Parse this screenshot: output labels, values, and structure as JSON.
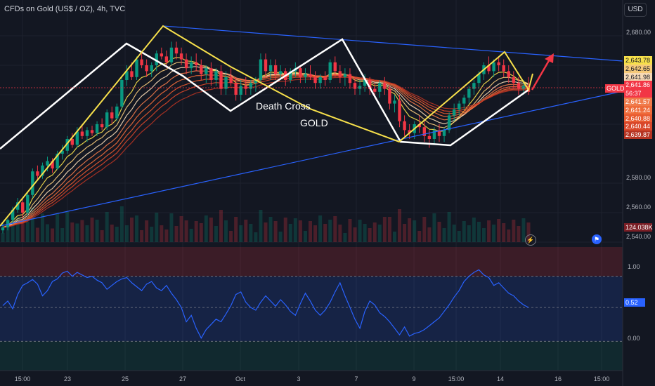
{
  "header": {
    "title": "CFDs on Gold (US$ / OZ), 4h, TVC",
    "currency_button": "USD"
  },
  "annotations": {
    "death_cross": "Death Cross",
    "gold": "GOLD"
  },
  "price_axis": {
    "ticks": [
      "2,680.00",
      "2,580.00",
      "2,560.00",
      "2,540.00"
    ]
  },
  "price_labels": [
    {
      "text": "2,643.78",
      "bg": "#f7e04b",
      "fg": "#131722"
    },
    {
      "text": "2,642.65",
      "bg": "#f5c97a",
      "fg": "#131722"
    },
    {
      "text": "2,641.98",
      "bg": "#f7d9b5",
      "fg": "#131722"
    },
    {
      "text": "2,641.86",
      "bg": "#f23645",
      "fg": "#ffffff"
    },
    {
      "text": "56:37",
      "bg": "#f23645",
      "fg": "#ffffff"
    },
    {
      "text": "2,641.57",
      "bg": "#f07a4a",
      "fg": "#ffffff"
    },
    {
      "text": "2,641.24",
      "bg": "#ef6b3a",
      "fg": "#ffffff"
    },
    {
      "text": "2,640.88",
      "bg": "#e85a30",
      "fg": "#ffffff"
    },
    {
      "text": "2,640.44",
      "bg": "#d9472a",
      "fg": "#ffffff"
    },
    {
      "text": "2,639.87",
      "bg": "#b53322",
      "fg": "#ffffff"
    }
  ],
  "gold_tag": "GOLD",
  "volume_label": {
    "text": "124.038K",
    "bg": "#7a1e25"
  },
  "oscillator": {
    "levels": [
      "1.00",
      "0.52",
      "0.00"
    ],
    "current_bg": "#2962ff"
  },
  "time_axis": [
    "15:00",
    "23",
    "25",
    "27",
    "Oct",
    "3",
    "7",
    "9",
    "15:00",
    "14",
    "16",
    "15:00"
  ],
  "icons": {
    "lightning": "lightning-icon",
    "us_flag": "us-flag-icon"
  },
  "chart_data": {
    "type": "candlestick",
    "symbol": "GOLD",
    "timeframe": "4h",
    "ylim": [
      2540,
      2690
    ],
    "candles": [
      [
        2548,
        2553,
        2546,
        2550
      ],
      [
        2550,
        2556,
        2548,
        2555
      ],
      [
        2555,
        2564,
        2552,
        2562
      ],
      [
        2562,
        2570,
        2560,
        2567
      ],
      [
        2567,
        2569,
        2556,
        2560
      ],
      [
        2560,
        2574,
        2558,
        2572
      ],
      [
        2572,
        2590,
        2570,
        2588
      ],
      [
        2588,
        2592,
        2582,
        2585
      ],
      [
        2585,
        2594,
        2583,
        2592
      ],
      [
        2592,
        2598,
        2588,
        2595
      ],
      [
        2595,
        2597,
        2587,
        2590
      ],
      [
        2590,
        2602,
        2589,
        2600
      ],
      [
        2600,
        2606,
        2596,
        2602
      ],
      [
        2602,
        2612,
        2600,
        2610
      ],
      [
        2610,
        2614,
        2604,
        2606
      ],
      [
        2606,
        2618,
        2604,
        2615
      ],
      [
        2615,
        2620,
        2610,
        2612
      ],
      [
        2612,
        2618,
        2608,
        2616
      ],
      [
        2616,
        2619,
        2612,
        2614
      ],
      [
        2614,
        2622,
        2612,
        2620
      ],
      [
        2620,
        2624,
        2616,
        2618
      ],
      [
        2618,
        2630,
        2616,
        2628
      ],
      [
        2628,
        2632,
        2620,
        2624
      ],
      [
        2624,
        2634,
        2622,
        2632
      ],
      [
        2632,
        2652,
        2630,
        2650
      ],
      [
        2650,
        2660,
        2646,
        2656
      ],
      [
        2656,
        2662,
        2650,
        2652
      ],
      [
        2652,
        2666,
        2650,
        2664
      ],
      [
        2664,
        2668,
        2658,
        2660
      ],
      [
        2660,
        2664,
        2652,
        2656
      ],
      [
        2656,
        2662,
        2652,
        2660
      ],
      [
        2660,
        2670,
        2656,
        2668
      ],
      [
        2668,
        2672,
        2664,
        2666
      ],
      [
        2666,
        2670,
        2658,
        2662
      ],
      [
        2662,
        2676,
        2660,
        2672
      ],
      [
        2672,
        2676,
        2664,
        2668
      ],
      [
        2668,
        2672,
        2660,
        2664
      ],
      [
        2664,
        2668,
        2654,
        2658
      ],
      [
        2658,
        2666,
        2654,
        2662
      ],
      [
        2662,
        2668,
        2656,
        2660
      ],
      [
        2660,
        2664,
        2650,
        2654
      ],
      [
        2654,
        2660,
        2648,
        2658
      ],
      [
        2658,
        2662,
        2646,
        2650
      ],
      [
        2650,
        2658,
        2646,
        2656
      ],
      [
        2656,
        2660,
        2640,
        2644
      ],
      [
        2644,
        2656,
        2640,
        2652
      ],
      [
        2652,
        2658,
        2646,
        2648
      ],
      [
        2648,
        2652,
        2636,
        2640
      ],
      [
        2640,
        2650,
        2636,
        2646
      ],
      [
        2646,
        2652,
        2640,
        2644
      ],
      [
        2644,
        2650,
        2640,
        2648
      ],
      [
        2648,
        2652,
        2642,
        2650
      ],
      [
        2650,
        2668,
        2648,
        2664
      ],
      [
        2664,
        2668,
        2652,
        2656
      ],
      [
        2656,
        2664,
        2650,
        2660
      ],
      [
        2660,
        2664,
        2650,
        2654
      ],
      [
        2654,
        2660,
        2650,
        2656
      ],
      [
        2656,
        2658,
        2646,
        2650
      ],
      [
        2650,
        2658,
        2648,
        2656
      ],
      [
        2656,
        2662,
        2652,
        2658
      ],
      [
        2658,
        2660,
        2648,
        2652
      ],
      [
        2652,
        2658,
        2648,
        2654
      ],
      [
        2654,
        2660,
        2650,
        2652
      ],
      [
        2652,
        2656,
        2644,
        2648
      ],
      [
        2648,
        2654,
        2644,
        2652
      ],
      [
        2652,
        2656,
        2646,
        2650
      ],
      [
        2650,
        2664,
        2648,
        2662
      ],
      [
        2662,
        2666,
        2652,
        2656
      ],
      [
        2656,
        2660,
        2648,
        2652
      ],
      [
        2652,
        2658,
        2646,
        2654
      ],
      [
        2654,
        2658,
        2644,
        2648
      ],
      [
        2648,
        2652,
        2640,
        2644
      ],
      [
        2644,
        2650,
        2640,
        2646
      ],
      [
        2646,
        2654,
        2642,
        2650
      ],
      [
        2650,
        2652,
        2640,
        2644
      ],
      [
        2644,
        2648,
        2638,
        2642
      ],
      [
        2642,
        2650,
        2638,
        2648
      ],
      [
        2648,
        2652,
        2640,
        2644
      ],
      [
        2644,
        2646,
        2630,
        2634
      ],
      [
        2634,
        2640,
        2628,
        2636
      ],
      [
        2636,
        2640,
        2618,
        2622
      ],
      [
        2622,
        2626,
        2612,
        2616
      ],
      [
        2616,
        2620,
        2610,
        2614
      ],
      [
        2614,
        2622,
        2610,
        2620
      ],
      [
        2620,
        2626,
        2614,
        2618
      ],
      [
        2618,
        2622,
        2608,
        2612
      ],
      [
        2612,
        2616,
        2604,
        2610
      ],
      [
        2610,
        2618,
        2606,
        2616
      ],
      [
        2616,
        2620,
        2608,
        2612
      ],
      [
        2612,
        2618,
        2608,
        2616
      ],
      [
        2616,
        2628,
        2614,
        2626
      ],
      [
        2626,
        2634,
        2622,
        2630
      ],
      [
        2630,
        2636,
        2626,
        2634
      ],
      [
        2634,
        2640,
        2630,
        2638
      ],
      [
        2638,
        2646,
        2634,
        2644
      ],
      [
        2644,
        2650,
        2640,
        2648
      ],
      [
        2648,
        2656,
        2644,
        2654
      ],
      [
        2654,
        2662,
        2650,
        2660
      ],
      [
        2660,
        2666,
        2654,
        2656
      ],
      [
        2656,
        2664,
        2652,
        2662
      ],
      [
        2662,
        2666,
        2656,
        2660
      ],
      [
        2660,
        2664,
        2652,
        2656
      ],
      [
        2656,
        2660,
        2648,
        2652
      ],
      [
        2652,
        2656,
        2644,
        2648
      ],
      [
        2648,
        2652,
        2640,
        2644
      ],
      [
        2644,
        2650,
        2640,
        2646
      ],
      [
        2646,
        2652,
        2640,
        2642
      ]
    ],
    "rsi_like": [
      0.55,
      0.62,
      0.5,
      0.72,
      0.86,
      0.9,
      0.95,
      0.88,
      0.7,
      0.78,
      0.92,
      0.96,
      1.05,
      1.08,
      1.0,
      1.06,
      1.02,
      0.98,
      1.0,
      0.94,
      0.9,
      0.8,
      0.86,
      0.92,
      0.96,
      0.98,
      0.9,
      0.84,
      0.78,
      0.88,
      0.92,
      0.82,
      0.78,
      0.86,
      0.74,
      0.64,
      0.52,
      0.3,
      0.4,
      0.2,
      0.05,
      0.18,
      0.26,
      0.34,
      0.3,
      0.42,
      0.55,
      0.72,
      0.76,
      0.6,
      0.52,
      0.48,
      0.6,
      0.7,
      0.62,
      0.54,
      0.64,
      0.56,
      0.46,
      0.4,
      0.58,
      0.74,
      0.62,
      0.48,
      0.4,
      0.48,
      0.6,
      0.76,
      0.9,
      0.7,
      0.52,
      0.34,
      0.2,
      0.46,
      0.62,
      0.56,
      0.44,
      0.38,
      0.3,
      0.2,
      0.1,
      0.22,
      0.08,
      0.12,
      0.14,
      0.18,
      0.24,
      0.3,
      0.36,
      0.46,
      0.56,
      0.68,
      0.78,
      0.92,
      1.0,
      1.06,
      1.1,
      1.02,
      0.98,
      0.86,
      0.9,
      0.82,
      0.74,
      0.7,
      0.62,
      0.56,
      0.52
    ],
    "oscillator_levels": [
      1.0,
      0.52,
      0.0
    ],
    "x_tick_labels": [
      "15:00",
      "23",
      "25",
      "27",
      "Oct",
      "3",
      "7",
      "9",
      "15:00",
      "14",
      "16",
      "15:00"
    ]
  }
}
